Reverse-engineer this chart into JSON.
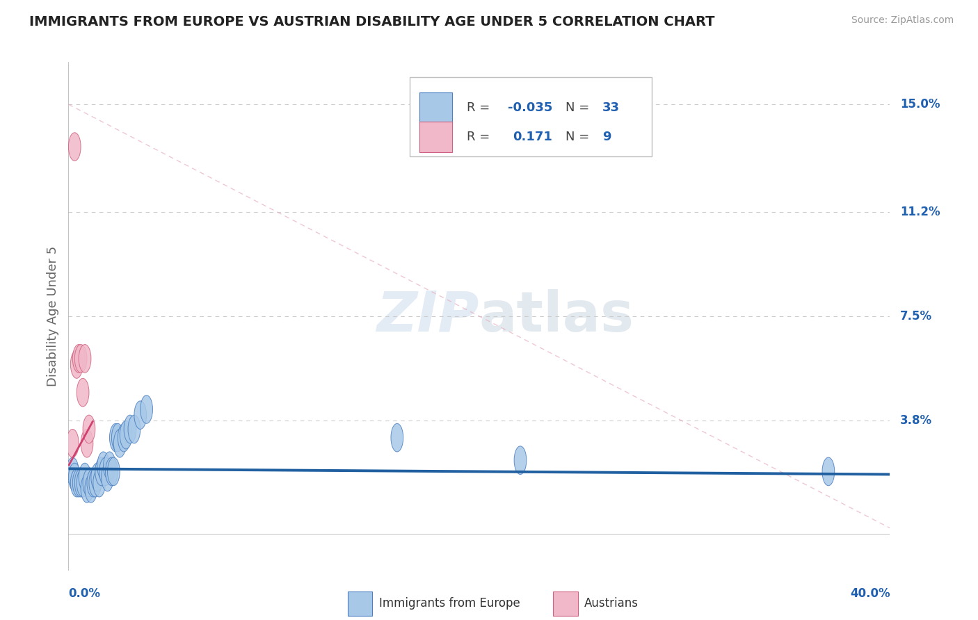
{
  "title": "IMMIGRANTS FROM EUROPE VS AUSTRIAN DISABILITY AGE UNDER 5 CORRELATION CHART",
  "source": "Source: ZipAtlas.com",
  "ylabel": "Disability Age Under 5",
  "xlim": [
    0.0,
    0.4
  ],
  "ylim": [
    -0.015,
    0.165
  ],
  "yticks": [
    0.0,
    0.038,
    0.075,
    0.112,
    0.15
  ],
  "ytick_labels": [
    "",
    "3.8%",
    "7.5%",
    "11.2%",
    "15.0%"
  ],
  "color_blue": "#a8c8e8",
  "color_blue_edge": "#4a7fc0",
  "color_pink": "#f0b8c8",
  "color_pink_edge": "#d06080",
  "color_line_blue": "#2060a0",
  "color_line_pink": "#d04070",
  "color_tick_blue": "#2060b0",
  "color_title": "#222222",
  "color_source": "#999999",
  "color_axis_label": "#666666",
  "watermark_color": "#dce8f5",
  "blue_x": [
    0.002,
    0.003,
    0.004,
    0.005,
    0.006,
    0.007,
    0.008,
    0.009,
    0.01,
    0.011,
    0.012,
    0.013,
    0.014,
    0.015,
    0.016,
    0.017,
    0.018,
    0.019,
    0.02,
    0.021,
    0.022,
    0.023,
    0.024,
    0.025,
    0.027,
    0.028,
    0.03,
    0.032,
    0.035,
    0.038,
    0.16,
    0.22,
    0.37
  ],
  "blue_y": [
    0.02,
    0.018,
    0.016,
    0.016,
    0.016,
    0.016,
    0.018,
    0.014,
    0.016,
    0.014,
    0.016,
    0.016,
    0.018,
    0.016,
    0.02,
    0.022,
    0.02,
    0.018,
    0.022,
    0.02,
    0.02,
    0.032,
    0.032,
    0.03,
    0.032,
    0.033,
    0.035,
    0.035,
    0.04,
    0.042,
    0.032,
    0.024,
    0.02
  ],
  "pink_x": [
    0.002,
    0.003,
    0.004,
    0.005,
    0.006,
    0.007,
    0.008,
    0.009,
    0.01
  ],
  "pink_y": [
    0.03,
    0.135,
    0.058,
    0.06,
    0.06,
    0.048,
    0.06,
    0.03,
    0.035
  ],
  "blue_trend_x": [
    0.0,
    0.4
  ],
  "blue_trend_y": [
    0.021,
    0.019
  ],
  "pink_trend_x": [
    0.0,
    0.012
  ],
  "pink_trend_y": [
    0.022,
    0.038
  ],
  "diag_line_x": [
    0.0,
    0.4
  ],
  "diag_line_y": [
    0.15,
    0.0
  ]
}
